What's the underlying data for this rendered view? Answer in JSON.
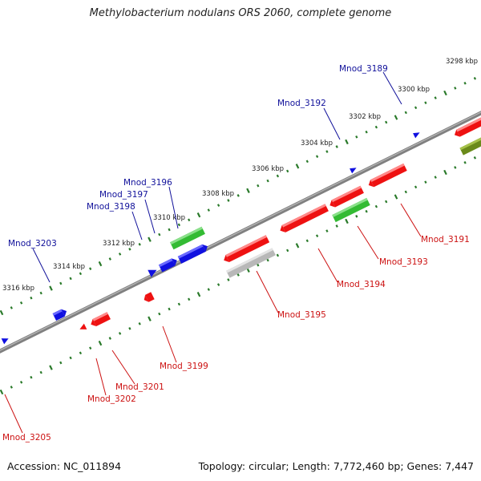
{
  "title": "Methylobacterium nodulans ORS 2060, complete genome",
  "footer": {
    "accession": "Accession: NC_011894",
    "summary": "Topology: circular; Length: 7,772,460 bp; Genes: 7,447"
  },
  "colors": {
    "forward_gene": "#1010e0",
    "reverse_gene": "#ee1111",
    "rna_gene": "#33bb33",
    "pseudo_gene": "#c0c0c0",
    "other_gene": "#6a8a1a",
    "forward_label": "#10109a",
    "reverse_label": "#cc1111",
    "tick": "#2a7a2a",
    "backbone": "#808080"
  },
  "scale_ticks": [
    "3298 kbp",
    "3300 kbp",
    "3302 kbp",
    "3304 kbp",
    "3306 kbp",
    "3308 kbp",
    "3310 kbp",
    "3312 kbp",
    "3314 kbp",
    "3316 kbp"
  ],
  "forward_labels": [
    "Mnod_3189",
    "Mnod_3192",
    "Mnod_3196",
    "Mnod_3197",
    "Mnod_3198",
    "Mnod_3203"
  ],
  "reverse_labels": [
    "Mnod_3191",
    "Mnod_3193",
    "Mnod_3194",
    "Mnod_3195",
    "Mnod_3199",
    "Mnod_3201",
    "Mnod_3202",
    "Mnod_3205"
  ]
}
